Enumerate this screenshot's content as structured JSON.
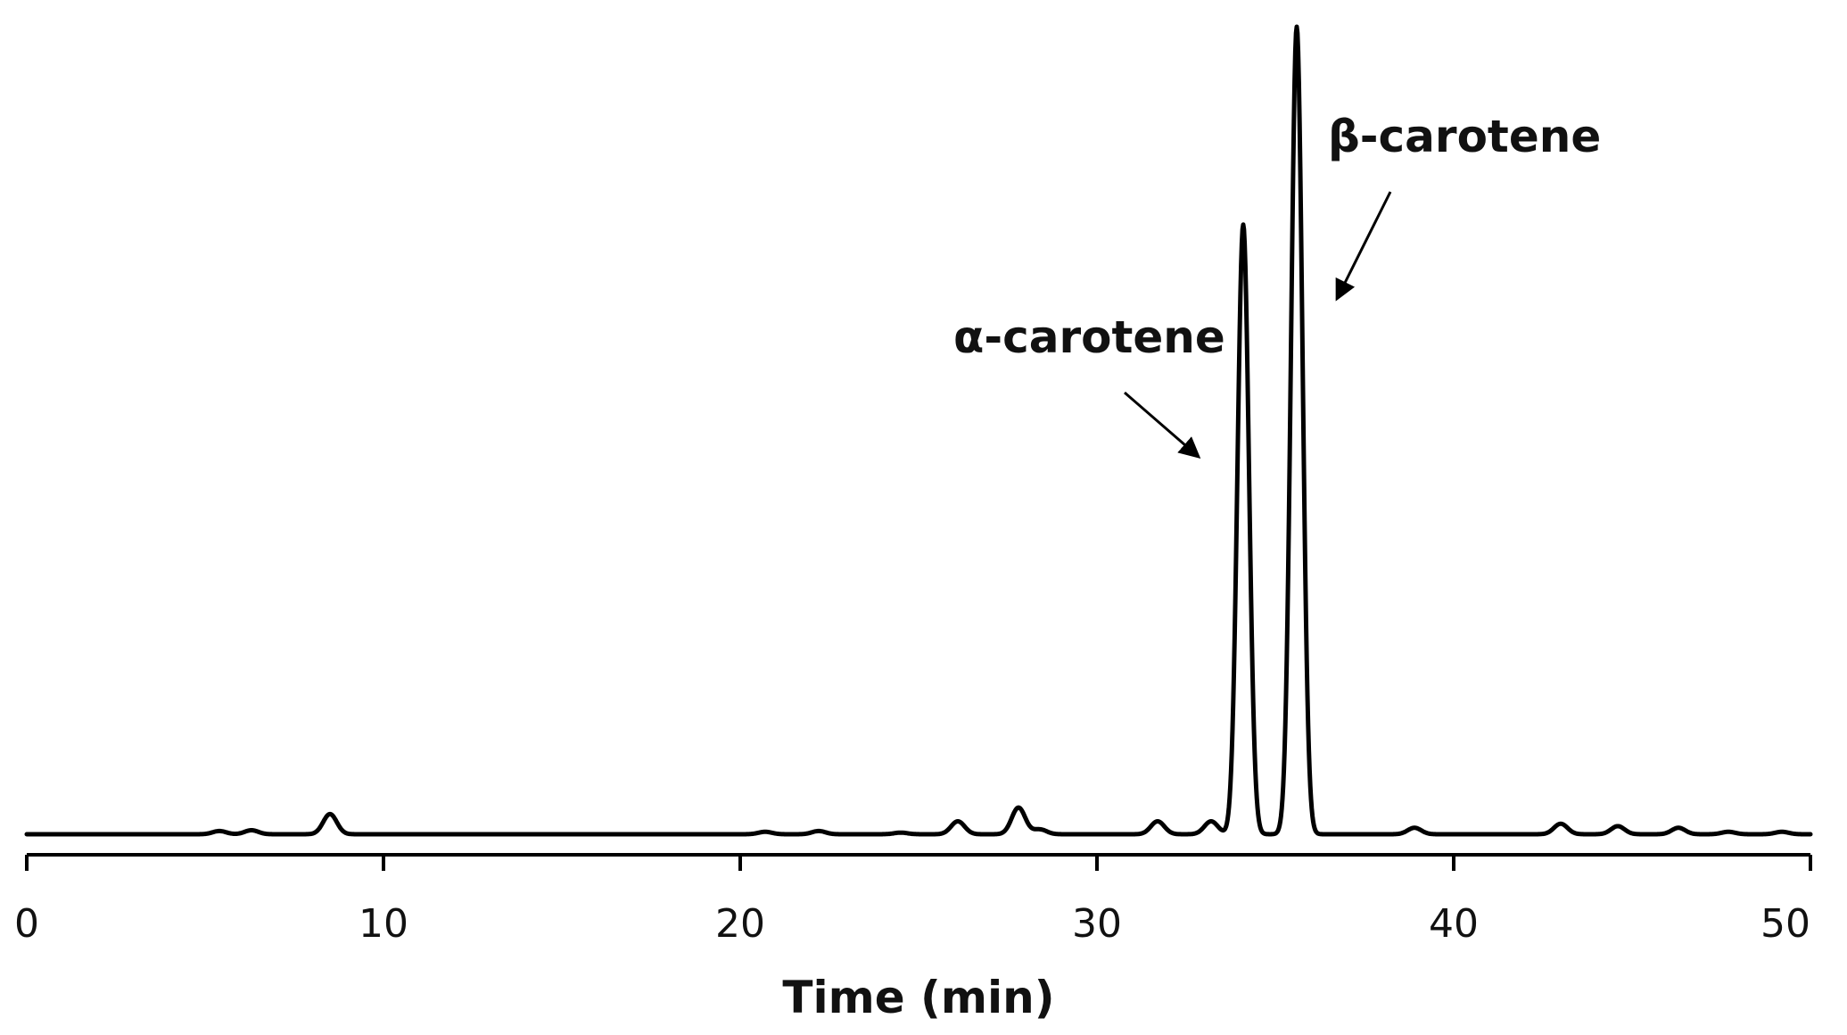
{
  "chart_data": {
    "type": "line",
    "title": "",
    "xlabel": "Time (min)",
    "ylabel": "",
    "xlim": [
      0,
      50
    ],
    "ylim": [
      0,
      100
    ],
    "xticks": [
      0,
      10,
      20,
      30,
      40,
      50
    ],
    "xtick_labels": [
      "0",
      "10",
      "20",
      "30",
      "40",
      "50"
    ],
    "grid": false,
    "legend": "none",
    "colors": {
      "line": "#000000",
      "axis": "#000000",
      "text": "#111111"
    },
    "series": [
      {
        "points": [
          [
            0,
            0
          ],
          [
            5.4,
            0.4
          ],
          [
            6.3,
            0.5
          ],
          [
            8.5,
            2.5
          ],
          [
            20.7,
            0.3
          ],
          [
            22.2,
            0.4
          ],
          [
            24.5,
            0.2
          ],
          [
            26.1,
            1.6
          ],
          [
            27.8,
            3.3
          ],
          [
            28.4,
            0.6
          ],
          [
            31.7,
            1.6
          ],
          [
            33.2,
            1.6
          ],
          [
            34.1,
            75.5
          ],
          [
            35.6,
            100
          ],
          [
            38.9,
            0.8
          ],
          [
            43.0,
            1.3
          ],
          [
            44.6,
            1.0
          ],
          [
            46.3,
            0.8
          ],
          [
            47.7,
            0.3
          ],
          [
            49.2,
            0.3
          ],
          [
            50,
            0
          ]
        ]
      }
    ],
    "annotations": [
      {
        "text": "α-carotene",
        "x": 34.1,
        "y": 75.5
      },
      {
        "text": "β-carotene",
        "x": 35.6,
        "y": 100
      }
    ]
  }
}
